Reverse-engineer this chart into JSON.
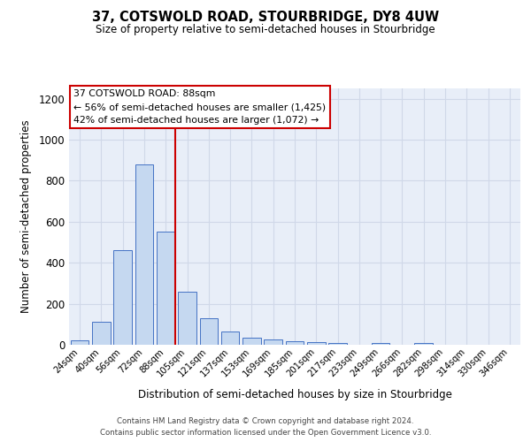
{
  "title": "37, COTSWOLD ROAD, STOURBRIDGE, DY8 4UW",
  "subtitle": "Size of property relative to semi-detached houses in Stourbridge",
  "xlabel": "Distribution of semi-detached houses by size in Stourbridge",
  "ylabel_text": "Number of semi-detached properties",
  "footer1": "Contains HM Land Registry data © Crown copyright and database right 2024.",
  "footer2": "Contains public sector information licensed under the Open Government Licence v3.0.",
  "bin_labels": [
    "24sqm",
    "40sqm",
    "56sqm",
    "72sqm",
    "88sqm",
    "105sqm",
    "121sqm",
    "137sqm",
    "153sqm",
    "169sqm",
    "185sqm",
    "201sqm",
    "217sqm",
    "233sqm",
    "249sqm",
    "266sqm",
    "282sqm",
    "298sqm",
    "314sqm",
    "330sqm",
    "346sqm"
  ],
  "bar_heights": [
    20,
    110,
    460,
    880,
    550,
    260,
    130,
    65,
    35,
    25,
    18,
    13,
    10,
    0,
    8,
    0,
    8,
    0,
    0,
    0,
    0
  ],
  "bar_color": "#c5d8f0",
  "bar_edge_color": "#4472c4",
  "ylim": [
    0,
    1250
  ],
  "yticks": [
    0,
    200,
    400,
    600,
    800,
    1000,
    1200
  ],
  "vline_bin_index": 4,
  "smaller_pct": 56,
  "smaller_n": 1425,
  "larger_pct": 42,
  "larger_n": 1072,
  "vline_color": "#cc0000",
  "annotation_box_color": "#cc0000",
  "grid_color": "#d0d8e8",
  "bg_color": "#e8eef8"
}
